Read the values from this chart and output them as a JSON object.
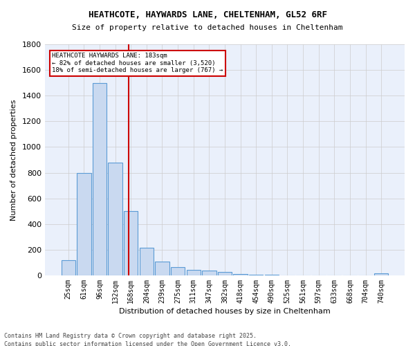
{
  "title_line1": "HEATHCOTE, HAYWARDS LANE, CHELTENHAM, GL52 6RF",
  "title_line2": "Size of property relative to detached houses in Cheltenham",
  "xlabel": "Distribution of detached houses by size in Cheltenham",
  "ylabel": "Number of detached properties",
  "bar_color": "#c9d9f0",
  "bar_edge_color": "#5b9bd5",
  "grid_color": "#cccccc",
  "background_color": "#eaf0fb",
  "vline_color": "#cc0000",
  "vline_x": 4,
  "annotation_text": "HEATHCOTE HAYWARDS LANE: 183sqm\n← 82% of detached houses are smaller (3,520)\n18% of semi-detached houses are larger (767) →",
  "annotation_box_color": "#cc0000",
  "footnote1": "Contains HM Land Registry data © Crown copyright and database right 2025.",
  "footnote2": "Contains public sector information licensed under the Open Government Licence v3.0.",
  "categories": [
    "25sqm",
    "61sqm",
    "96sqm",
    "132sqm",
    "168sqm",
    "204sqm",
    "239sqm",
    "275sqm",
    "311sqm",
    "347sqm",
    "382sqm",
    "418sqm",
    "454sqm",
    "490sqm",
    "525sqm",
    "561sqm",
    "597sqm",
    "633sqm",
    "668sqm",
    "704sqm",
    "740sqm"
  ],
  "values": [
    120,
    800,
    1500,
    880,
    500,
    215,
    110,
    65,
    45,
    35,
    25,
    10,
    5,
    3,
    2,
    2,
    1,
    1,
    0,
    0,
    15
  ],
  "ylim": [
    0,
    1800
  ],
  "yticks": [
    0,
    200,
    400,
    600,
    800,
    1000,
    1200,
    1400,
    1600,
    1800
  ]
}
